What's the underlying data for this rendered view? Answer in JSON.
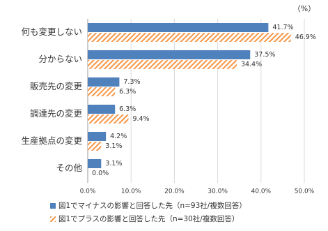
{
  "chart_data": {
    "type": "hbar",
    "unit_label": "（%）",
    "categories": [
      "何も変更しない",
      "分からない",
      "販売先の変更",
      "調達先の変更",
      "生産拠点の変更",
      "その他"
    ],
    "series": [
      {
        "name": "図1でマイナスの影響と回答した先（n=93社/複数回答）",
        "color": "#4f81bd",
        "pattern": "solid",
        "values": [
          41.7,
          37.5,
          7.3,
          6.3,
          4.2,
          3.1
        ],
        "value_labels": [
          "41.7%",
          "37.5%",
          "7.3%",
          "6.3%",
          "4.2%",
          "3.1%"
        ]
      },
      {
        "name": "図1でプラスの影響と回答した先（n=30社/複数回答）",
        "color": "#f79646",
        "pattern": "hatch",
        "values": [
          46.9,
          34.4,
          6.3,
          9.4,
          3.1,
          0.0
        ],
        "value_labels": [
          "46.9%",
          "34.4%",
          "6.3%",
          "9.4%",
          "3.1%",
          "0.0%"
        ]
      }
    ],
    "xlim": [
      0,
      50
    ],
    "xticks": [
      {
        "value": 0,
        "label": "0.0%"
      },
      {
        "value": 10,
        "label": "10.0%"
      },
      {
        "value": 20,
        "label": "20.0%"
      },
      {
        "value": 30,
        "label": "30.0%"
      },
      {
        "value": 40,
        "label": "40.0%"
      },
      {
        "value": 50,
        "label": "50.0%"
      }
    ],
    "grid": true
  }
}
